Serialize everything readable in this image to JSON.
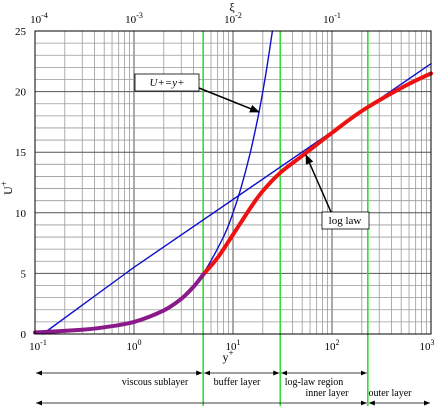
{
  "chart_data": {
    "type": "line",
    "title": "",
    "xlabel": "y+",
    "x2label": "ξ",
    "ylabel": "U+",
    "xscale": "log",
    "xlim": [
      0.1,
      1000
    ],
    "ylim": [
      0,
      25
    ],
    "x2lim": [
      0.0001,
      1
    ],
    "grid": true,
    "xticks": [
      {
        "base": "10",
        "exp": "-1",
        "value": 0.1
      },
      {
        "base": "10",
        "exp": "0",
        "value": 1
      },
      {
        "base": "10",
        "exp": "1",
        "value": 10
      },
      {
        "base": "10",
        "exp": "2",
        "value": 100
      },
      {
        "base": "10",
        "exp": "3",
        "value": 1000
      }
    ],
    "x2ticks": [
      {
        "base": "10",
        "exp": "-4",
        "value": 0.0001
      },
      {
        "base": "10",
        "exp": "-3",
        "value": 0.001
      },
      {
        "base": "10",
        "exp": "-2",
        "value": 0.01
      },
      {
        "base": "10",
        "exp": "-1",
        "value": 0.1
      }
    ],
    "yticks": [
      "0",
      "5",
      "10",
      "15",
      "20",
      "25"
    ],
    "series": [
      {
        "name": "U+=y+",
        "color": "#1010cc",
        "x": [
          0.1,
          0.2,
          0.5,
          1,
          2,
          3,
          5,
          8,
          10,
          12,
          15,
          18,
          20,
          22,
          25
        ],
        "y": [
          0.1,
          0.2,
          0.5,
          1,
          2,
          3,
          5,
          8,
          10,
          12,
          15,
          18,
          20,
          22,
          25
        ]
      },
      {
        "name": "log law",
        "color": "#1010cc",
        "x": [
          0.12,
          1,
          10,
          100,
          1000
        ],
        "y": [
          0,
          5.5,
          11.1,
          16.7,
          22.3
        ]
      },
      {
        "name": "",
        "color": "#ee1111",
        "x": [
          5,
          7,
          10,
          15,
          20,
          30,
          50,
          100,
          200,
          500,
          1000
        ],
        "y": [
          4.9,
          6.3,
          8.2,
          10.4,
          11.8,
          13.3,
          14.7,
          16.6,
          18.4,
          20.3,
          21.5
        ]
      },
      {
        "name": "",
        "color": "#8a1a8a",
        "x": [
          0.1,
          0.3,
          0.5,
          1,
          2,
          3,
          4,
          5
        ],
        "y": [
          0.12,
          0.35,
          0.55,
          1.0,
          1.95,
          2.9,
          3.9,
          4.9
        ]
      }
    ],
    "vlines": [
      {
        "x": 5,
        "color": "#33dd33"
      },
      {
        "x": 30,
        "color": "#33dd33"
      },
      {
        "x": 230,
        "color": "#33dd33"
      }
    ],
    "annotations": [
      {
        "text": "U+=y+"
      },
      {
        "text": "log law"
      }
    ],
    "regions": [
      {
        "label": "viscous sublayer",
        "from": 0.1,
        "to": 5
      },
      {
        "label": "buffer layer",
        "from": 5,
        "to": 30
      },
      {
        "label": "log-law region",
        "from": 30,
        "to": 230
      },
      {
        "label": "inner layer",
        "from": 0.1,
        "to": 230
      },
      {
        "label": "outer layer",
        "from": 230,
        "to": 1000
      }
    ]
  }
}
